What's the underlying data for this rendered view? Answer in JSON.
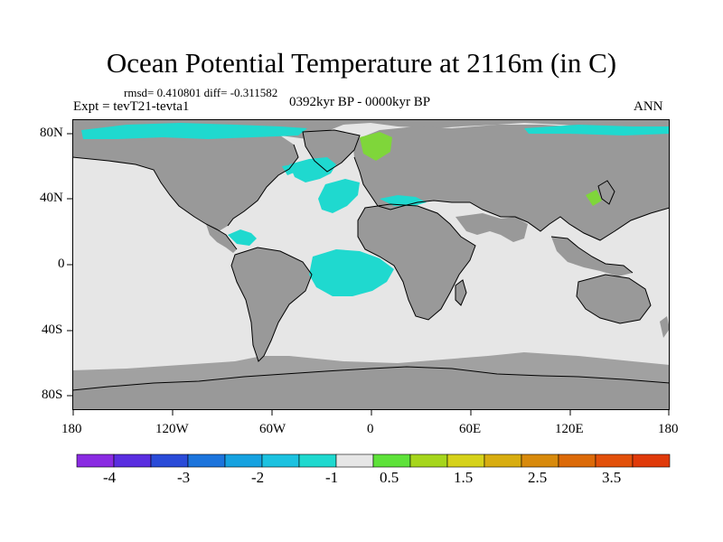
{
  "header": {
    "title": "Ocean Potential Temperature at 2116m (in C)",
    "stats": "rmsd= 0.410801  diff= -0.311582",
    "experiment": "Expt = tevT21-tevta1",
    "period": "0392kyr BP - 0000kyr BP",
    "season": "ANN"
  },
  "axes": {
    "lat_labels": [
      "80N",
      "40N",
      "0",
      "40S",
      "80S"
    ],
    "lon_labels": [
      "180",
      "120W",
      "60W",
      "0",
      "60E",
      "120E",
      "180"
    ]
  },
  "colorbar": {
    "colors": [
      "#8a2be2",
      "#5a2ee0",
      "#2a4bd8",
      "#1c74dc",
      "#16a2e0",
      "#1cc2e0",
      "#1fd9cf",
      "#e6e6e6",
      "#5ee23a",
      "#a6d61c",
      "#d6d21a",
      "#d8ad10",
      "#d88a0c",
      "#dc6a08",
      "#e2500a",
      "#e03a0a"
    ],
    "tick_labels": [
      "-4",
      "-3",
      "-2",
      "-1",
      "0.5",
      "1.5",
      "2.5",
      "3.5"
    ]
  },
  "legend_colors": {
    "land": "#999999",
    "ocean_near_zero": "#e6e6e6",
    "cool_anomaly": "#1fd9cf",
    "warm_anomaly": "#7fd63a",
    "coast": "#000000"
  }
}
